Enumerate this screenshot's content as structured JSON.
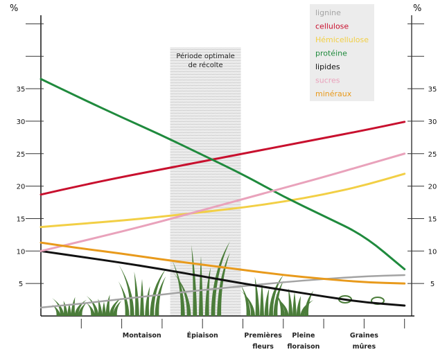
{
  "chart_data": {
    "type": "line",
    "ylabel_left": "%",
    "ylabel_right": "%",
    "ylim": [
      0,
      48
    ],
    "yticks": [
      5,
      10,
      15,
      20,
      25,
      30,
      35,
      40,
      45
    ],
    "ytick_labels": [
      "5",
      "10",
      "15",
      "20",
      "25",
      "30",
      "35",
      "",
      ""
    ],
    "x": [
      0,
      1,
      2,
      3,
      4,
      5,
      6,
      7,
      8,
      9
    ],
    "xlim": [
      0,
      9.25
    ],
    "xticks": [
      1,
      2,
      3,
      4,
      5,
      6,
      7,
      8,
      9
    ],
    "stage_labels": [
      {
        "pos": 2.5,
        "lines": [
          "Montaison"
        ]
      },
      {
        "pos": 4.0,
        "lines": [
          "Épiaison"
        ]
      },
      {
        "pos": 5.5,
        "lines": [
          "Premières",
          "fleurs"
        ]
      },
      {
        "pos": 6.5,
        "lines": [
          "Pleine",
          "floraison"
        ]
      },
      {
        "pos": 8.0,
        "lines": [
          "Graines",
          "mûres"
        ]
      }
    ],
    "shaded_period": {
      "from": 3.2,
      "to": 4.95,
      "label": [
        "Période optimale",
        "de récolte"
      ]
    },
    "legend_position": "top-right",
    "series": [
      {
        "name": "lignine",
        "color": "#a3a3a3",
        "values": [
          1.3,
          1.9,
          2.6,
          3.3,
          4.0,
          4.6,
          5.2,
          5.7,
          6.1,
          6.3
        ]
      },
      {
        "name": "cellulose",
        "color": "#c8102e",
        "values": [
          18.7,
          20.1,
          21.4,
          22.6,
          23.8,
          25.0,
          26.2,
          27.4,
          28.6,
          29.9
        ]
      },
      {
        "name": "Hémicellulose",
        "color": "#f2cf45",
        "values": [
          13.7,
          14.2,
          14.7,
          15.3,
          16.0,
          16.7,
          17.6,
          18.7,
          20.1,
          21.9
        ]
      },
      {
        "name": "protéine",
        "color": "#1f8a3d",
        "values": [
          36.5,
          33.5,
          30.6,
          27.8,
          24.8,
          21.8,
          18.4,
          15.4,
          12.4,
          7.2
        ]
      },
      {
        "name": "lipides",
        "color": "#111111",
        "values": [
          10.0,
          9.1,
          8.2,
          7.2,
          6.1,
          5.0,
          4.0,
          3.0,
          2.1,
          1.6
        ]
      },
      {
        "name": "sucres",
        "color": "#e9a2bb",
        "values": [
          10.0,
          11.5,
          13.0,
          14.6,
          16.3,
          18.0,
          19.7,
          21.4,
          23.2,
          25.0
        ]
      },
      {
        "name": "minéraux",
        "color": "#e89a1c",
        "values": [
          11.3,
          10.4,
          9.6,
          8.7,
          7.9,
          7.1,
          6.3,
          5.7,
          5.2,
          5.0
        ]
      }
    ],
    "plant_color": "#4b7d3a"
  }
}
